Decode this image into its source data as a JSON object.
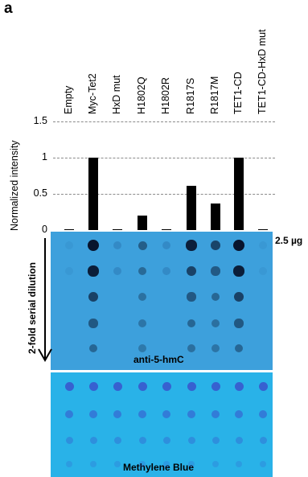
{
  "panel_label": "a",
  "chart_data": {
    "type": "bar",
    "categories": [
      "Empty",
      "Myc-Tet2",
      "HxD mut",
      "H1802Q",
      "H1802R",
      "R1817S",
      "R1817M",
      "TET1-CD",
      "TET1-CD-HxD mut"
    ],
    "values": [
      0.0,
      1.0,
      0.0,
      0.2,
      0.01,
      0.61,
      0.37,
      1.0,
      0.0
    ],
    "ylabel": "Normalized intensity",
    "ylim": [
      0,
      1.5
    ],
    "yticks": [
      "1.5",
      "1",
      "0.5",
      "0"
    ],
    "grid": true
  },
  "blot_hmc": {
    "caption": "anti-5-hmC",
    "amount_label": "2.5 µg",
    "dilution_label": "2-fold serial dilution",
    "color": "#3da0dc"
  },
  "blot_mb": {
    "caption": "Methylene Blue",
    "color": "#29b2e8"
  }
}
